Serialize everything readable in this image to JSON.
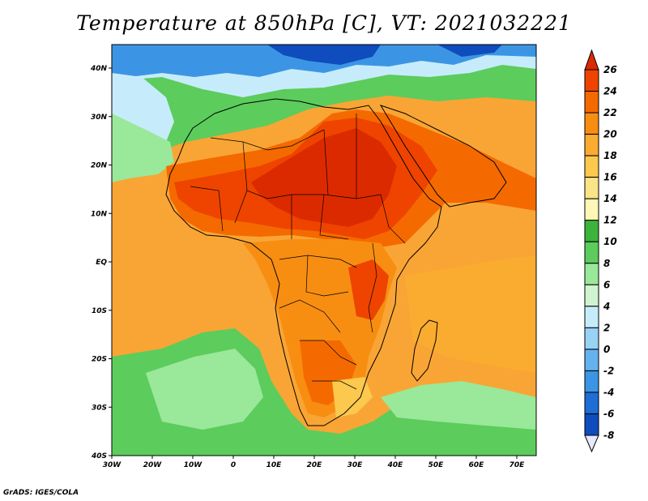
{
  "title": "Temperature at 850hPa [C], VT: 2021032221",
  "credit": "GrADS: IGES/COLA",
  "map": {
    "lon_labels": [
      "30W",
      "20W",
      "10W",
      "0",
      "10E",
      "20E",
      "30E",
      "40E",
      "50E",
      "60E",
      "70E"
    ],
    "lat_labels": [
      "40N",
      "30N",
      "20N",
      "10N",
      "EQ",
      "10S",
      "20S",
      "30S",
      "40S"
    ]
  },
  "colorbar": {
    "labels": [
      "26",
      "24",
      "22",
      "20",
      "18",
      "16",
      "14",
      "12",
      "10",
      "8",
      "6",
      "4",
      "2",
      "0",
      "-2",
      "-4",
      "-6",
      "-8"
    ],
    "colors": [
      "#dc2a00",
      "#ee4400",
      "#f46a00",
      "#f78e12",
      "#faac30",
      "#fcc84e",
      "#fbe487",
      "#fef7b6",
      "#3cb43c",
      "#5ccc5c",
      "#9ae89a",
      "#cff4cf",
      "#c6ecfb",
      "#98d2f5",
      "#64b3ee",
      "#3c95e4",
      "#1e6ed6",
      "#0f4cbd",
      "#07339d",
      "#07116d"
    ]
  },
  "style": {
    "ocean_warm": "#f7a52a",
    "land_hot": "#dc2a00",
    "cold_north": "#3c95e4",
    "south_ocean_green": "#5ccc5c"
  }
}
